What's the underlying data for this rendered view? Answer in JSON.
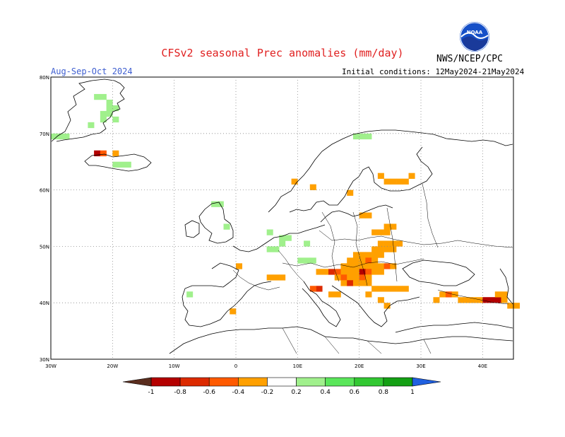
{
  "title": "CFSv2 seasonal Prec anomalies (mm/day)",
  "period": "Aug-Sep-Oct 2024",
  "initial_conditions": "Initial conditions: 12May2024-21May2024",
  "agency": "NWS/NCEP/CPC",
  "logo_text": "NOAA",
  "map": {
    "lon_range": [
      -30,
      45
    ],
    "lat_range": [
      30,
      80
    ],
    "lon_ticks": [
      "30W",
      "20W",
      "10W",
      "0",
      "10E",
      "20E",
      "30E",
      "40E"
    ],
    "lat_ticks": [
      "80N",
      "70N",
      "60N",
      "50N",
      "40N",
      "30N"
    ]
  },
  "colorbar": {
    "labels": [
      "-1",
      "-0.8",
      "-0.6",
      "-0.4",
      "-0.2",
      "0.2",
      "0.4",
      "0.6",
      "0.8",
      "1"
    ],
    "colors": [
      "#5a2d1e",
      "#b40000",
      "#dc2a00",
      "#ff5a00",
      "#ffa000",
      "#ffffff",
      "#a0f08c",
      "#5ae65a",
      "#32c832",
      "#14a014",
      "#2060e0"
    ]
  },
  "anomalies": [
    {
      "lon": -21,
      "lat": 74,
      "v": 0.3
    },
    {
      "lon": -20,
      "lat": 74,
      "v": 0.3
    },
    {
      "lon": -22,
      "lat": 73,
      "v": 0.3
    },
    {
      "lon": -21,
      "lat": 73,
      "v": 0.3
    },
    {
      "lon": -22,
      "lat": 72,
      "v": 0.3
    },
    {
      "lon": -20,
      "lat": 72,
      "v": 0.3
    },
    {
      "lon": -24,
      "lat": 71,
      "v": 0.3
    },
    {
      "lon": -29,
      "lat": 69,
      "v": 0.3
    },
    {
      "lon": -28,
      "lat": 69,
      "v": 0.3
    },
    {
      "lon": -23,
      "lat": 76,
      "v": 0.3
    },
    {
      "lon": -22,
      "lat": 76,
      "v": 0.3
    },
    {
      "lon": -23,
      "lat": 66,
      "v": -0.8
    },
    {
      "lon": -22,
      "lat": 66,
      "v": -0.4
    },
    {
      "lon": -20,
      "lat": 66,
      "v": -0.3
    },
    {
      "lon": -19,
      "lat": 64,
      "v": 0.3
    },
    {
      "lon": -18,
      "lat": 64,
      "v": 0.3
    },
    {
      "lon": -20,
      "lat": 64,
      "v": 0.3
    },
    {
      "lon": -4,
      "lat": 57,
      "v": 0.3
    },
    {
      "lon": -3,
      "lat": 57,
      "v": 0.3
    },
    {
      "lon": -2,
      "lat": 53,
      "v": 0.3
    },
    {
      "lon": 5,
      "lat": 52,
      "v": 0.3
    },
    {
      "lon": 7,
      "lat": 51,
      "v": 0.3
    },
    {
      "lon": 8,
      "lat": 51,
      "v": 0.3
    },
    {
      "lon": 7,
      "lat": 50,
      "v": 0.3
    },
    {
      "lon": 5,
      "lat": 49,
      "v": 0.3
    },
    {
      "lon": 6,
      "lat": 49,
      "v": 0.3
    },
    {
      "lon": 11,
      "lat": 50,
      "v": 0.3
    },
    {
      "lon": 10,
      "lat": 47,
      "v": 0.3
    },
    {
      "lon": 11,
      "lat": 47,
      "v": 0.3
    },
    {
      "lon": 12,
      "lat": 47,
      "v": 0.3
    },
    {
      "lon": -8,
      "lat": 41,
      "v": 0.3
    },
    {
      "lon": 19,
      "lat": 69,
      "v": 0.3
    },
    {
      "lon": 20,
      "lat": 69,
      "v": 0.3
    },
    {
      "lon": 21,
      "lat": 69,
      "v": 0.3
    },
    {
      "lon": -30,
      "lat": 69,
      "v": 0.3
    },
    {
      "lon": -21,
      "lat": 75,
      "v": 0.3
    },
    {
      "lon": 23,
      "lat": 62,
      "v": -0.3
    },
    {
      "lon": 24,
      "lat": 61,
      "v": -0.3
    },
    {
      "lon": 25,
      "lat": 61,
      "v": -0.3
    },
    {
      "lon": 26,
      "lat": 61,
      "v": -0.3
    },
    {
      "lon": 27,
      "lat": 61,
      "v": -0.3
    },
    {
      "lon": 28,
      "lat": 62,
      "v": -0.3
    },
    {
      "lon": 12,
      "lat": 60,
      "v": -0.3
    },
    {
      "lon": 18,
      "lat": 59,
      "v": -0.3
    },
    {
      "lon": 21,
      "lat": 55,
      "v": -0.3
    },
    {
      "lon": 20,
      "lat": 55,
      "v": -0.3
    },
    {
      "lon": 24,
      "lat": 53,
      "v": -0.3
    },
    {
      "lon": 25,
      "lat": 53,
      "v": -0.3
    },
    {
      "lon": 24,
      "lat": 52,
      "v": -0.3
    },
    {
      "lon": 23,
      "lat": 50,
      "v": -0.3
    },
    {
      "lon": 24,
      "lat": 50,
      "v": -0.3
    },
    {
      "lon": 25,
      "lat": 50,
      "v": -0.3
    },
    {
      "lon": 26,
      "lat": 50,
      "v": -0.3
    },
    {
      "lon": 22,
      "lat": 49,
      "v": -0.3
    },
    {
      "lon": 23,
      "lat": 49,
      "v": -0.3
    },
    {
      "lon": 24,
      "lat": 49,
      "v": -0.3
    },
    {
      "lon": 25,
      "lat": 49,
      "v": -0.3
    },
    {
      "lon": 19,
      "lat": 48,
      "v": -0.3
    },
    {
      "lon": 20,
      "lat": 48,
      "v": -0.3
    },
    {
      "lon": 21,
      "lat": 48,
      "v": -0.3
    },
    {
      "lon": 22,
      "lat": 48,
      "v": -0.3
    },
    {
      "lon": 23,
      "lat": 48,
      "v": -0.3
    },
    {
      "lon": 18,
      "lat": 47,
      "v": -0.3
    },
    {
      "lon": 19,
      "lat": 47,
      "v": -0.3
    },
    {
      "lon": 20,
      "lat": 47,
      "v": -0.3
    },
    {
      "lon": 21,
      "lat": 47,
      "v": -0.5
    },
    {
      "lon": 22,
      "lat": 47,
      "v": -0.3
    },
    {
      "lon": 17,
      "lat": 46,
      "v": -0.3
    },
    {
      "lon": 18,
      "lat": 46,
      "v": -0.3
    },
    {
      "lon": 19,
      "lat": 46,
      "v": -0.3
    },
    {
      "lon": 20,
      "lat": 46,
      "v": -0.3
    },
    {
      "lon": 21,
      "lat": 46,
      "v": -0.3
    },
    {
      "lon": 22,
      "lat": 46,
      "v": -0.3
    },
    {
      "lon": 23,
      "lat": 46,
      "v": -0.3
    },
    {
      "lon": 24,
      "lat": 46,
      "v": -0.5
    },
    {
      "lon": 25,
      "lat": 46,
      "v": -0.3
    },
    {
      "lon": 14,
      "lat": 45,
      "v": -0.3
    },
    {
      "lon": 15,
      "lat": 45,
      "v": -0.6
    },
    {
      "lon": 16,
      "lat": 45,
      "v": -0.4
    },
    {
      "lon": 17,
      "lat": 45,
      "v": -0.3
    },
    {
      "lon": 18,
      "lat": 45,
      "v": -0.3
    },
    {
      "lon": 19,
      "lat": 45,
      "v": -0.3
    },
    {
      "lon": 20,
      "lat": 45,
      "v": -0.9
    },
    {
      "lon": 21,
      "lat": 45,
      "v": -0.5
    },
    {
      "lon": 22,
      "lat": 45,
      "v": -0.3
    },
    {
      "lon": 23,
      "lat": 45,
      "v": -0.3
    },
    {
      "lon": 13,
      "lat": 45,
      "v": -0.3
    },
    {
      "lon": 16,
      "lat": 44,
      "v": -0.3
    },
    {
      "lon": 17,
      "lat": 44,
      "v": -0.5
    },
    {
      "lon": 18,
      "lat": 44,
      "v": -0.3
    },
    {
      "lon": 19,
      "lat": 44,
      "v": -0.3
    },
    {
      "lon": 20,
      "lat": 44,
      "v": -0.5
    },
    {
      "lon": 21,
      "lat": 44,
      "v": -0.3
    },
    {
      "lon": 17,
      "lat": 43,
      "v": -0.3
    },
    {
      "lon": 18,
      "lat": 43,
      "v": -0.7
    },
    {
      "lon": 19,
      "lat": 43,
      "v": -0.3
    },
    {
      "lon": 20,
      "lat": 43,
      "v": -0.3
    },
    {
      "lon": 21,
      "lat": 43,
      "v": -0.3
    },
    {
      "lon": 22,
      "lat": 42,
      "v": -0.3
    },
    {
      "lon": 23,
      "lat": 42,
      "v": -0.3
    },
    {
      "lon": 24,
      "lat": 42,
      "v": -0.3
    },
    {
      "lon": 25,
      "lat": 42,
      "v": -0.3
    },
    {
      "lon": 26,
      "lat": 42,
      "v": -0.3
    },
    {
      "lon": 27,
      "lat": 42,
      "v": -0.3
    },
    {
      "lon": 21,
      "lat": 41,
      "v": -0.3
    },
    {
      "lon": 15,
      "lat": 41,
      "v": -0.3
    },
    {
      "lon": 16,
      "lat": 41,
      "v": -0.3
    },
    {
      "lon": 13,
      "lat": 42,
      "v": -0.6
    },
    {
      "lon": 12,
      "lat": 42,
      "v": -0.4
    },
    {
      "lon": 24,
      "lat": 39,
      "v": -0.3
    },
    {
      "lon": 23,
      "lat": 40,
      "v": -0.3
    },
    {
      "lon": 5,
      "lat": 44,
      "v": -0.3
    },
    {
      "lon": 6,
      "lat": 44,
      "v": -0.3
    },
    {
      "lon": 7,
      "lat": 44,
      "v": -0.3
    },
    {
      "lon": 0,
      "lat": 46,
      "v": -0.3
    },
    {
      "lon": -1,
      "lat": 38,
      "v": -0.3
    },
    {
      "lon": 9,
      "lat": 61,
      "v": -0.3
    },
    {
      "lon": 22,
      "lat": 52,
      "v": -0.3
    },
    {
      "lon": 23,
      "lat": 52,
      "v": -0.3
    },
    {
      "lon": 33,
      "lat": 41,
      "v": -0.3
    },
    {
      "lon": 34,
      "lat": 41,
      "v": -0.5
    },
    {
      "lon": 35,
      "lat": 41,
      "v": -0.3
    },
    {
      "lon": 36,
      "lat": 40,
      "v": -0.3
    },
    {
      "lon": 37,
      "lat": 40,
      "v": -0.3
    },
    {
      "lon": 38,
      "lat": 40,
      "v": -0.3
    },
    {
      "lon": 39,
      "lat": 40,
      "v": -0.3
    },
    {
      "lon": 40,
      "lat": 40,
      "v": -0.9
    },
    {
      "lon": 41,
      "lat": 40,
      "v": -0.9
    },
    {
      "lon": 42,
      "lat": 40,
      "v": -0.9
    },
    {
      "lon": 43,
      "lat": 40,
      "v": -0.3
    },
    {
      "lon": 43,
      "lat": 41,
      "v": -0.3
    },
    {
      "lon": 42,
      "lat": 41,
      "v": -0.3
    },
    {
      "lon": 32,
      "lat": 40,
      "v": -0.3
    },
    {
      "lon": 44,
      "lat": 39,
      "v": -0.3
    },
    {
      "lon": 45,
      "lat": 39,
      "v": -0.3
    }
  ]
}
